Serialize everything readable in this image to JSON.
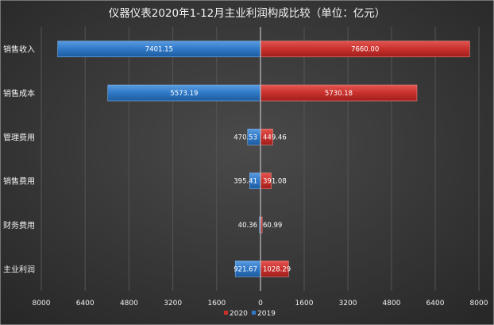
{
  "chart_data": {
    "type": "bar",
    "orientation": "horizontal",
    "layout": "diverging",
    "title": "仪器仪表2020年1-12月主业利润构成比较（单位：亿元）",
    "categories": [
      "销售收入",
      "销售成本",
      "管理费用",
      "销售费用",
      "财务费用",
      "主业利润"
    ],
    "series": [
      {
        "name": "2020",
        "values": [
          7660.0,
          5730.18,
          449.46,
          391.08,
          60.99,
          1028.29
        ],
        "labels": [
          "7660.00",
          "5730.18",
          "449.46",
          "391.08",
          "60.99",
          "1028.29"
        ],
        "color": "#c9302c",
        "side": "right"
      },
      {
        "name": "2019",
        "values": [
          7401.15,
          5573.19,
          470.53,
          395.41,
          40.36,
          921.67
        ],
        "labels": [
          "7401.15",
          "5573.19",
          "470.53",
          "395.41",
          "40.36",
          "921.67"
        ],
        "color": "#2f78c7",
        "side": "left"
      }
    ],
    "xlim": [
      -8000,
      8000
    ],
    "xticks": [
      -8000,
      -6400,
      -4800,
      -3200,
      -1600,
      0,
      1600,
      3200,
      4800,
      6400,
      8000
    ],
    "xtick_labels": [
      "8000",
      "6400",
      "4800",
      "3200",
      "1600",
      "0",
      "1600",
      "3200",
      "4800",
      "6400",
      "8000"
    ],
    "grid": true,
    "legend_position": "bottom",
    "background": "#3a3a3a",
    "plot_background": "#333333"
  }
}
